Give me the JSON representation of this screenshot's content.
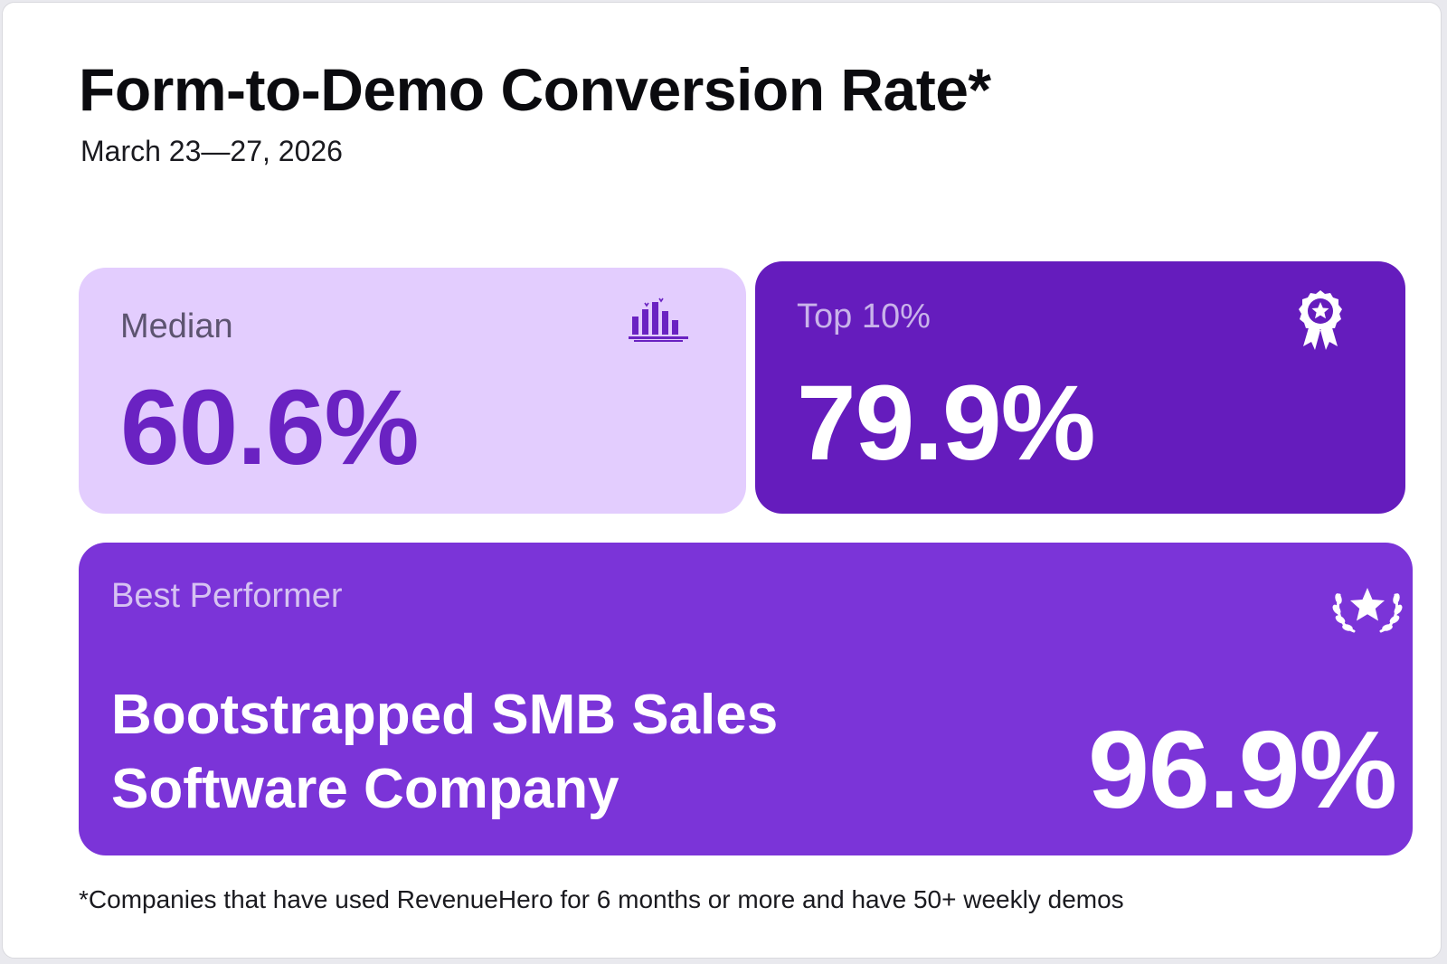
{
  "header": {
    "title": "Form-to-Demo Conversion Rate*",
    "date_range": "March 23—27, 2026"
  },
  "cards": {
    "median": {
      "label": "Median",
      "value": "60.6%",
      "icon": "bar-chart-icon",
      "bg_color": "#e3cdfe",
      "label_color": "#5d5470",
      "value_color": "#6a22c2"
    },
    "top10": {
      "label": "Top 10%",
      "value": "79.9%",
      "icon": "award-ribbon-icon",
      "bg_color": "#651cbd",
      "label_color": "#c9b3ea",
      "value_color": "#ffffff"
    },
    "best": {
      "label": "Best Performer",
      "name_line1": "Bootstrapped SMB Sales",
      "name_line2": "Software Company",
      "value": "96.9%",
      "icon": "laurel-star-icon",
      "bg_color": "#7b34d8",
      "label_color": "#d6c2f2",
      "value_color": "#ffffff"
    }
  },
  "footnote": "*Companies that have used RevenueHero for 6 months or more and have 50+ weekly demos"
}
